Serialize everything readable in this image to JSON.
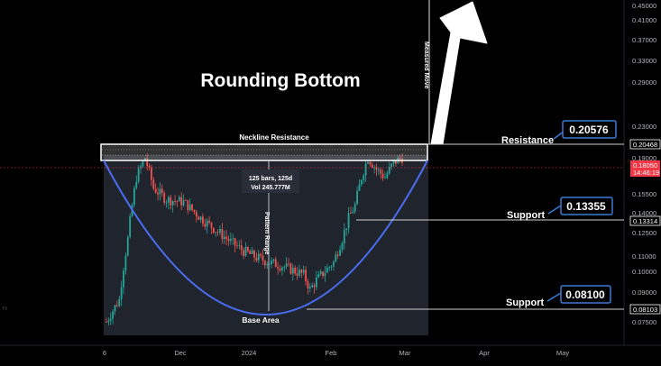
{
  "chart_data": {
    "type": "candlestick",
    "title": "Rounding Bottom",
    "y_axis": {
      "ticks": [
        "0.45000",
        "0.41000",
        "0.37000",
        "0.33000",
        "0.29000",
        "0.23000",
        "0.19000",
        "0.15500",
        "0.14000",
        "0.12500",
        "0.11000",
        "0.10000",
        "0.09000",
        "0.07500"
      ],
      "price_tags": [
        {
          "label": "0.20468",
          "style": "outline"
        },
        {
          "label": "0.18050",
          "sublabel": "14:46:19",
          "style": "current",
          "color": "#f23645"
        },
        {
          "label": "0.13314",
          "style": "outline"
        },
        {
          "label": "0.08103",
          "style": "outline"
        }
      ]
    },
    "x_axis": {
      "ticks": [
        "6",
        "Dec",
        "2024",
        "Feb",
        "Mar",
        "Apr",
        "May"
      ]
    },
    "annotations": {
      "neckline_label": "Neckline Resistance",
      "measured_move_label": "Measured Move",
      "pattern_range_label": "Pattern Range",
      "base_area_label": "Base Area",
      "measure_text_1": "125 bars, 125d",
      "measure_text_2": "Vol 245.777M",
      "resistance_label": "Resistance",
      "resistance_value": "0.20576",
      "support1_label": "Support",
      "support1_value": "0.13355",
      "support2_label": "Support",
      "support2_value": "0.08100"
    },
    "colors": {
      "up": "#26a69a",
      "down": "#ef5350",
      "curve": "#4169e1",
      "accent_box": "#3a7bd5",
      "current_price": "#f23645"
    },
    "price_path_keypoints": [
      [
        0,
        0.075
      ],
      [
        6,
        0.085
      ],
      [
        10,
        0.12
      ],
      [
        14,
        0.17
      ],
      [
        18,
        0.19
      ],
      [
        22,
        0.16
      ],
      [
        28,
        0.15
      ],
      [
        36,
        0.148
      ],
      [
        44,
        0.135
      ],
      [
        52,
        0.125
      ],
      [
        58,
        0.118
      ],
      [
        64,
        0.112
      ],
      [
        70,
        0.108
      ],
      [
        76,
        0.105
      ],
      [
        82,
        0.103
      ],
      [
        88,
        0.1
      ],
      [
        92,
        0.098
      ],
      [
        95,
        0.09
      ],
      [
        98,
        0.095
      ],
      [
        102,
        0.1
      ],
      [
        106,
        0.105
      ],
      [
        110,
        0.12
      ],
      [
        113,
        0.135
      ],
      [
        116,
        0.145
      ],
      [
        119,
        0.17
      ],
      [
        122,
        0.19
      ],
      [
        126,
        0.178
      ],
      [
        130,
        0.17
      ],
      [
        134,
        0.185
      ],
      [
        138,
        0.19
      ]
    ],
    "scale_note": "log",
    "side_mark": "TV"
  }
}
